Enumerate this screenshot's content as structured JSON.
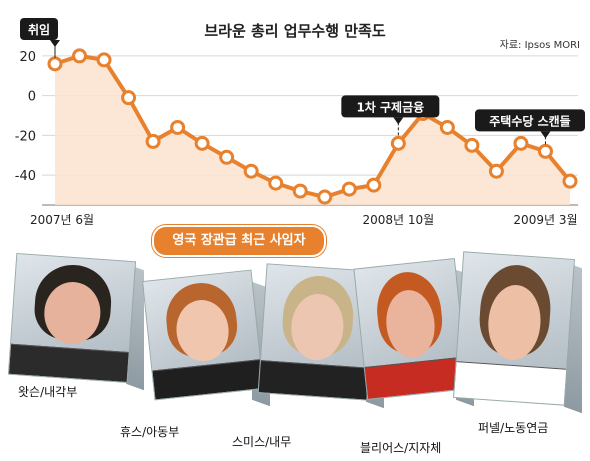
{
  "chart_data": {
    "type": "line",
    "title": "브라운 총리 업무수행 만족도",
    "source": "자료: Ipsos MORI",
    "x_tick_labels": [
      "2007년 6월",
      "2008년 10월",
      "2009년 3월"
    ],
    "y_ticks": [
      20,
      0,
      -20,
      -40
    ],
    "ylim": [
      -55,
      28
    ],
    "values": [
      16,
      20,
      18,
      -1,
      -23,
      -16,
      -24,
      -31,
      -38,
      -44,
      -48,
      -51,
      -47,
      -45,
      -24,
      -9,
      -16,
      -25,
      -38,
      -24,
      -28,
      -43
    ],
    "callouts": [
      {
        "label": "취임",
        "point_index": 0
      },
      {
        "label": "1차 구제금융",
        "point_index": 14
      },
      {
        "label": "주택수당 스캔들",
        "point_index": 20
      }
    ],
    "colors": {
      "line": "#e8812e",
      "fill": "#fbe3cf",
      "callout": "#1a1a1a"
    }
  },
  "banner": {
    "label": "영국 장관급 최근 사임자"
  },
  "people": [
    {
      "caption": "왓슨/내각부",
      "hair": "#2a241f",
      "skin": "#e7b29c",
      "shirt": "#2b2b2b"
    },
    {
      "caption": "휴스/아동부",
      "hair": "#b8652e",
      "skin": "#f0c7ae",
      "shirt": "#1f1f1f"
    },
    {
      "caption": "스미스/내무",
      "hair": "#c9b48a",
      "skin": "#ecc6b1",
      "shirt": "#222222"
    },
    {
      "caption": "블리어스/지자체",
      "hair": "#c45a22",
      "skin": "#eab39c",
      "shirt": "#c62c22"
    },
    {
      "caption": "퍼넬/노동연금",
      "hair": "#6b4a32",
      "skin": "#edc0a5",
      "shirt": "#ffffff"
    }
  ]
}
